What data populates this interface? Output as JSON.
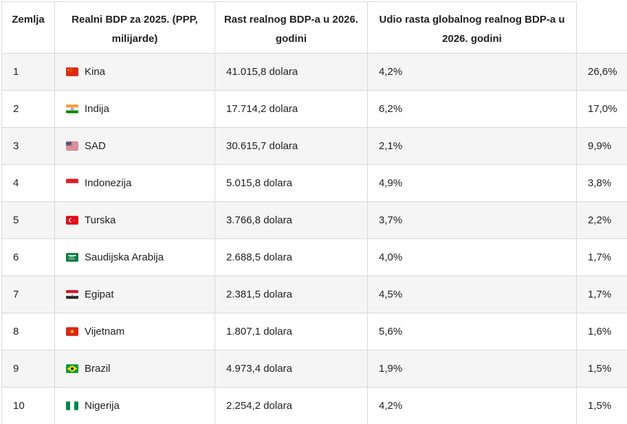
{
  "chart_data": {
    "type": "table",
    "title": "",
    "columns": [
      "Zemlja",
      "Realni BDP za 2025. (PPP, milijarde)",
      "Rast realnog BDP-a u 2026. godini",
      "Udio rasta globalnog realnog BDP-a u 2026. godini",
      ""
    ],
    "rows": [
      {
        "rank": "1",
        "country": "Kina",
        "flag": "cn",
        "flag_icon": "china-flag-icon",
        "gdp": "41.015,8 dolara",
        "growth": "4,2%",
        "share": "26,6%"
      },
      {
        "rank": "2",
        "country": "Indija",
        "flag": "in",
        "flag_icon": "india-flag-icon",
        "gdp": "17.714,2 dolara",
        "growth": "6,2%",
        "share": "17,0%"
      },
      {
        "rank": "3",
        "country": "SAD",
        "flag": "us",
        "flag_icon": "usa-flag-icon",
        "gdp": "30.615,7 dolara",
        "growth": "2,1%",
        "share": "9,9%"
      },
      {
        "rank": "4",
        "country": "Indonezija",
        "flag": "id",
        "flag_icon": "indonesia-flag-icon",
        "gdp": "5.015,8 dolara",
        "growth": "4,9%",
        "share": "3,8%"
      },
      {
        "rank": "5",
        "country": "Turska",
        "flag": "tr",
        "flag_icon": "turkey-flag-icon",
        "gdp": "3.766,8 dolara",
        "growth": "3,7%",
        "share": "2,2%"
      },
      {
        "rank": "6",
        "country": "Saudijska Arabija",
        "flag": "sa",
        "flag_icon": "saudi-arabia-flag-icon",
        "gdp": "2.688,5 dolara",
        "growth": "4,0%",
        "share": "1,7%"
      },
      {
        "rank": "7",
        "country": "Egipat",
        "flag": "eg",
        "flag_icon": "egypt-flag-icon",
        "gdp": "2.381,5 dolara",
        "growth": "4,5%",
        "share": "1,7%"
      },
      {
        "rank": "8",
        "country": "Vijetnam",
        "flag": "vn",
        "flag_icon": "vietnam-flag-icon",
        "gdp": "1.807,1 dolara",
        "growth": "5,6%",
        "share": "1,6%"
      },
      {
        "rank": "9",
        "country": "Brazil",
        "flag": "br",
        "flag_icon": "brazil-flag-icon",
        "gdp": "4.973,4 dolara",
        "growth": "1,9%",
        "share": "1,5%"
      },
      {
        "rank": "10",
        "country": "Nigerija",
        "flag": "ng",
        "flag_icon": "nigeria-flag-icon",
        "gdp": "2.254,2 dolara",
        "growth": "4,2%",
        "share": "1,5%"
      }
    ]
  },
  "colors": {
    "border": "#d7d8d9",
    "row_stripe": "#f5f5f5",
    "text": "#202124",
    "background": "#ffffff"
  }
}
